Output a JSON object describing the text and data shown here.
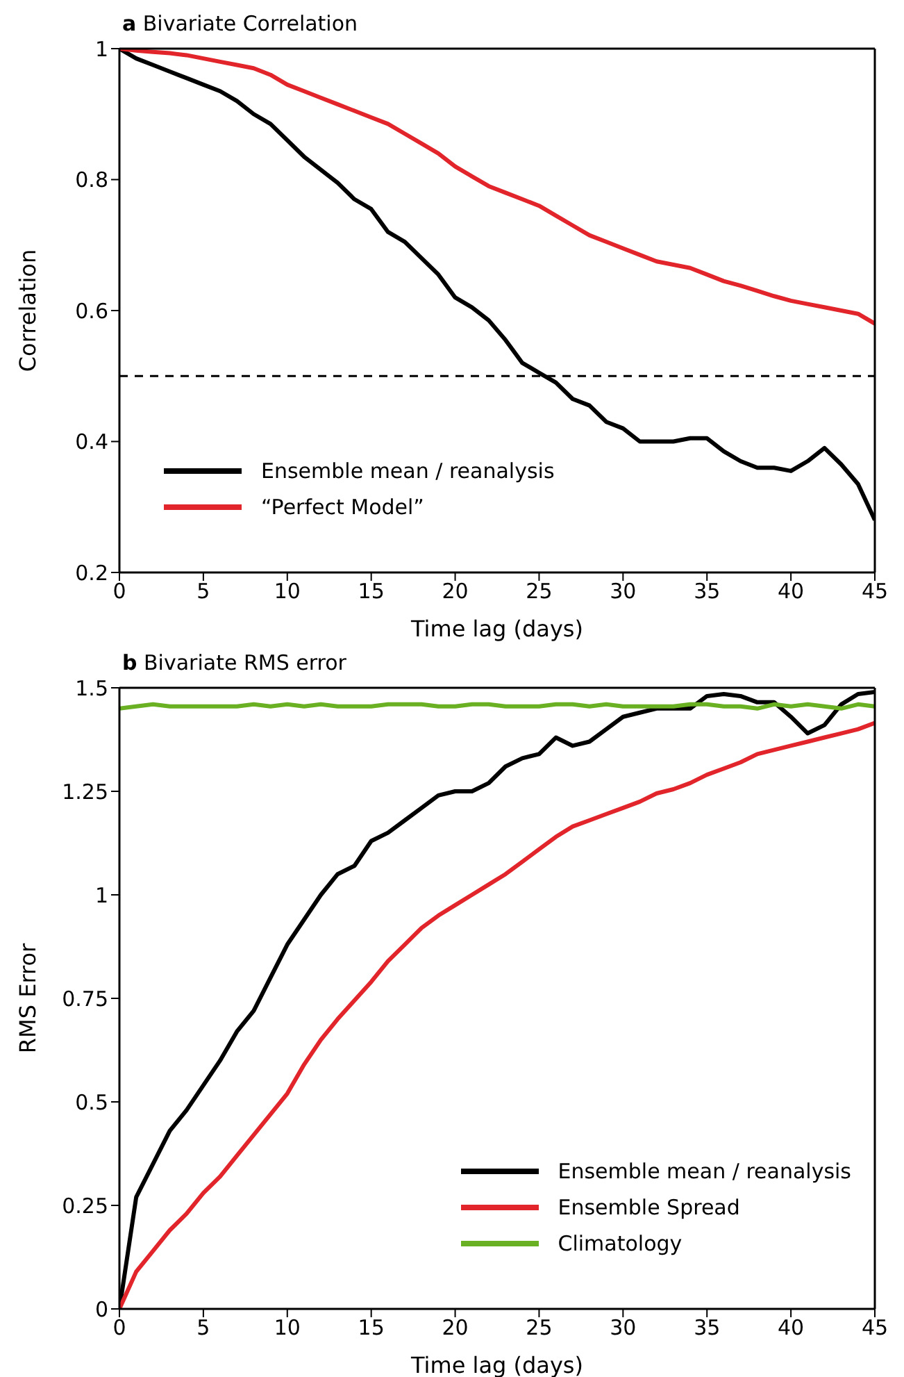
{
  "chart_data": [
    {
      "type": "line",
      "title": "a Bivariate Correlation",
      "xlabel": "Time lag (days)",
      "ylabel": "Correlation",
      "x": [
        0,
        1,
        2,
        3,
        4,
        5,
        6,
        7,
        8,
        9,
        10,
        11,
        12,
        13,
        14,
        15,
        16,
        17,
        18,
        19,
        20,
        21,
        22,
        23,
        24,
        25,
        26,
        27,
        28,
        29,
        30,
        31,
        32,
        33,
        34,
        35,
        36,
        37,
        38,
        39,
        40,
        41,
        42,
        43,
        44,
        45
      ],
      "series": [
        {
          "name": "Ensemble mean / reanalysis",
          "color": "#000000",
          "values": [
            1.0,
            0.985,
            0.975,
            0.965,
            0.955,
            0.945,
            0.935,
            0.92,
            0.9,
            0.885,
            0.86,
            0.835,
            0.815,
            0.795,
            0.77,
            0.755,
            0.72,
            0.705,
            0.68,
            0.655,
            0.62,
            0.605,
            0.585,
            0.555,
            0.52,
            0.505,
            0.49,
            0.465,
            0.455,
            0.43,
            0.42,
            0.4,
            0.4,
            0.4,
            0.405,
            0.405,
            0.385,
            0.37,
            0.36,
            0.36,
            0.355,
            0.37,
            0.39,
            0.365,
            0.335,
            0.28
          ]
        },
        {
          "name": "“Perfect Model”",
          "color": "#e2252b",
          "values": [
            1.0,
            0.997,
            0.995,
            0.993,
            0.99,
            0.985,
            0.98,
            0.975,
            0.97,
            0.96,
            0.945,
            0.935,
            0.925,
            0.915,
            0.905,
            0.895,
            0.885,
            0.87,
            0.855,
            0.84,
            0.82,
            0.805,
            0.79,
            0.78,
            0.77,
            0.76,
            0.745,
            0.73,
            0.715,
            0.705,
            0.695,
            0.685,
            0.675,
            0.67,
            0.665,
            0.655,
            0.645,
            0.638,
            0.63,
            0.622,
            0.615,
            0.61,
            0.605,
            0.6,
            0.595,
            0.58
          ]
        }
      ],
      "xlim": [
        0,
        45
      ],
      "xticks": [
        0,
        5,
        10,
        15,
        20,
        25,
        30,
        35,
        40,
        45
      ],
      "ylim": [
        0.2,
        1
      ],
      "yticks": [
        0.2,
        0.4,
        0.6,
        0.8,
        1
      ],
      "ref_lines": [
        {
          "axis": "y",
          "value": 0.5,
          "color": "#000000",
          "line_style": "dashed"
        }
      ],
      "legend": "bottom left",
      "grid": false
    },
    {
      "type": "line",
      "title": "b Bivariate RMS error",
      "xlabel": "Time lag (days)",
      "ylabel": "RMS Error",
      "x": [
        0,
        1,
        2,
        3,
        4,
        5,
        6,
        7,
        8,
        9,
        10,
        11,
        12,
        13,
        14,
        15,
        16,
        17,
        18,
        19,
        20,
        21,
        22,
        23,
        24,
        25,
        26,
        27,
        28,
        29,
        30,
        31,
        32,
        33,
        34,
        35,
        36,
        37,
        38,
        39,
        40,
        41,
        42,
        43,
        44,
        45
      ],
      "series": [
        {
          "name": "Ensemble mean / reanalysis",
          "color": "#000000",
          "values": [
            0,
            0.27,
            0.35,
            0.43,
            0.48,
            0.54,
            0.6,
            0.67,
            0.72,
            0.8,
            0.88,
            0.94,
            1.0,
            1.05,
            1.07,
            1.13,
            1.15,
            1.18,
            1.21,
            1.24,
            1.25,
            1.25,
            1.27,
            1.31,
            1.33,
            1.34,
            1.38,
            1.36,
            1.37,
            1.4,
            1.43,
            1.44,
            1.45,
            1.45,
            1.45,
            1.48,
            1.485,
            1.48,
            1.465,
            1.465,
            1.43,
            1.39,
            1.41,
            1.46,
            1.485,
            1.49
          ]
        },
        {
          "name": "Ensemble Spread",
          "color": "#e2252b",
          "values": [
            0,
            0.09,
            0.14,
            0.19,
            0.23,
            0.28,
            0.32,
            0.37,
            0.42,
            0.47,
            0.52,
            0.59,
            0.65,
            0.7,
            0.745,
            0.79,
            0.84,
            0.88,
            0.92,
            0.95,
            0.975,
            1.0,
            1.025,
            1.05,
            1.08,
            1.11,
            1.14,
            1.165,
            1.18,
            1.195,
            1.21,
            1.225,
            1.245,
            1.255,
            1.27,
            1.29,
            1.305,
            1.32,
            1.34,
            1.35,
            1.36,
            1.37,
            1.38,
            1.39,
            1.4,
            1.415
          ]
        },
        {
          "name": "Climatology",
          "color": "#6ab023",
          "values": [
            1.45,
            1.455,
            1.46,
            1.455,
            1.455,
            1.455,
            1.455,
            1.455,
            1.46,
            1.455,
            1.46,
            1.455,
            1.46,
            1.455,
            1.455,
            1.455,
            1.46,
            1.46,
            1.46,
            1.455,
            1.455,
            1.46,
            1.46,
            1.455,
            1.455,
            1.455,
            1.46,
            1.46,
            1.455,
            1.46,
            1.455,
            1.455,
            1.455,
            1.455,
            1.46,
            1.46,
            1.455,
            1.455,
            1.45,
            1.46,
            1.455,
            1.46,
            1.455,
            1.45,
            1.46,
            1.455
          ]
        }
      ],
      "xlim": [
        0,
        45
      ],
      "xticks": [
        0,
        5,
        10,
        15,
        20,
        25,
        30,
        35,
        40,
        45
      ],
      "ylim": [
        0,
        1.5
      ],
      "yticks": [
        0,
        0.25,
        0.5,
        0.75,
        1,
        1.25,
        1.5
      ],
      "legend": "bottom right",
      "grid": false
    }
  ]
}
